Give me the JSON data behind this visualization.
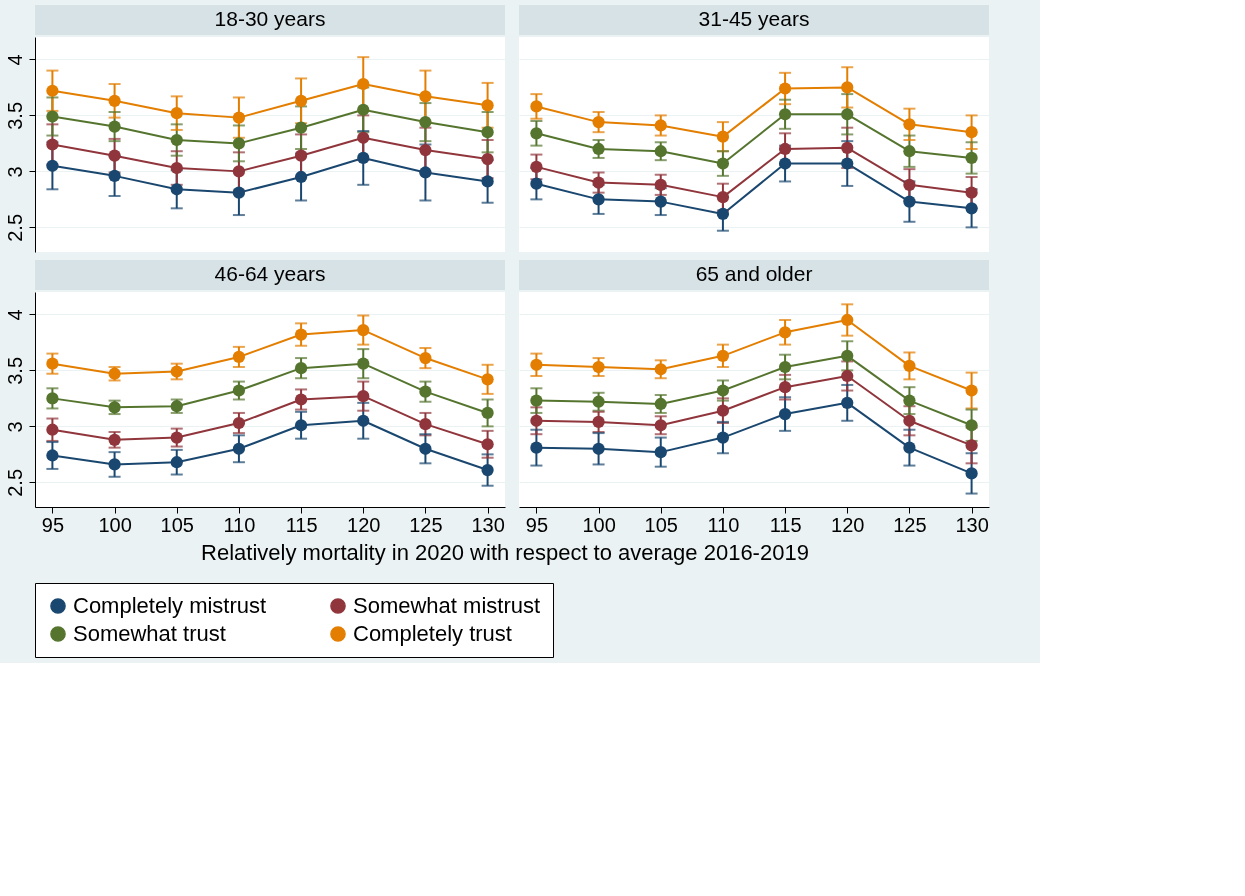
{
  "chart_data": [
    {
      "type": "line",
      "title": "18-30 years",
      "xlim": [
        93.6,
        131.4
      ],
      "ylim": [
        2.28,
        4.2
      ],
      "xticks": [
        95,
        100,
        105,
        110,
        115,
        120,
        125,
        130
      ],
      "yticks": [
        2.5,
        3,
        3.5,
        4
      ],
      "tick_labels": "y",
      "grid": "y",
      "marker": "circle",
      "line_style": "solid",
      "legend": "bottom",
      "x": [
        95,
        100,
        105,
        110,
        115,
        120,
        125,
        130
      ],
      "series": [
        {
          "name": "Completely mistrust",
          "color": "#1a476f",
          "values": [
            3.05,
            2.96,
            2.84,
            2.81,
            2.95,
            3.12,
            2.99,
            2.91
          ],
          "errors": [
            0.21,
            0.18,
            0.17,
            0.2,
            0.21,
            0.24,
            0.25,
            0.19
          ]
        },
        {
          "name": "Somewhat mistrust",
          "color": "#90353b",
          "values": [
            3.24,
            3.14,
            3.03,
            3.0,
            3.14,
            3.3,
            3.19,
            3.11
          ],
          "errors": [
            0.18,
            0.15,
            0.15,
            0.17,
            0.19,
            0.2,
            0.2,
            0.17
          ]
        },
        {
          "name": "Somewhat trust",
          "color": "#55752f",
          "values": [
            3.49,
            3.4,
            3.28,
            3.25,
            3.39,
            3.55,
            3.44,
            3.35
          ],
          "errors": [
            0.17,
            0.13,
            0.14,
            0.16,
            0.19,
            0.2,
            0.17,
            0.18
          ]
        },
        {
          "name": "Completely trust",
          "color": "#e37e00",
          "values": [
            3.72,
            3.63,
            3.52,
            3.48,
            3.63,
            3.78,
            3.67,
            3.59
          ],
          "errors": [
            0.18,
            0.15,
            0.15,
            0.18,
            0.2,
            0.24,
            0.23,
            0.2
          ]
        }
      ]
    },
    {
      "type": "line",
      "title": "31-45 years",
      "xlim": [
        93.6,
        131.4
      ],
      "ylim": [
        2.28,
        4.2
      ],
      "xticks": [
        95,
        100,
        105,
        110,
        115,
        120,
        125,
        130
      ],
      "yticks": [
        2.5,
        3,
        3.5,
        4
      ],
      "tick_labels": false,
      "grid": "y",
      "marker": "circle",
      "line_style": "solid",
      "legend": "bottom",
      "x": [
        95,
        100,
        105,
        110,
        115,
        120,
        125,
        130
      ],
      "series": [
        {
          "name": "Completely mistrust",
          "color": "#1a476f",
          "values": [
            2.89,
            2.75,
            2.73,
            2.62,
            3.07,
            3.07,
            2.73,
            2.67
          ],
          "errors": [
            0.14,
            0.13,
            0.12,
            0.15,
            0.16,
            0.2,
            0.18,
            0.17
          ]
        },
        {
          "name": "Somewhat mistrust",
          "color": "#90353b",
          "values": [
            3.04,
            2.9,
            2.88,
            2.77,
            3.2,
            3.21,
            2.88,
            2.81
          ],
          "errors": [
            0.11,
            0.09,
            0.09,
            0.12,
            0.14,
            0.18,
            0.14,
            0.14
          ]
        },
        {
          "name": "Somewhat trust",
          "color": "#55752f",
          "values": [
            3.34,
            3.2,
            3.18,
            3.07,
            3.51,
            3.51,
            3.18,
            3.12
          ],
          "errors": [
            0.11,
            0.08,
            0.08,
            0.11,
            0.13,
            0.18,
            0.14,
            0.14
          ]
        },
        {
          "name": "Completely trust",
          "color": "#e37e00",
          "values": [
            3.58,
            3.44,
            3.41,
            3.31,
            3.74,
            3.75,
            3.42,
            3.35
          ],
          "errors": [
            0.11,
            0.09,
            0.09,
            0.13,
            0.14,
            0.18,
            0.14,
            0.15
          ]
        }
      ]
    },
    {
      "type": "line",
      "title": "46-64 years",
      "xlabel": "Relatively mortality in 2020 with respect to average 2016-2019",
      "xlim": [
        93.6,
        131.4
      ],
      "ylim": [
        2.28,
        4.2
      ],
      "xticks": [
        95,
        100,
        105,
        110,
        115,
        120,
        125,
        130
      ],
      "yticks": [
        2.5,
        3,
        3.5,
        4
      ],
      "grid": "y",
      "marker": "circle",
      "line_style": "solid",
      "legend": "bottom",
      "x": [
        95,
        100,
        105,
        110,
        115,
        120,
        125,
        130
      ],
      "series": [
        {
          "name": "Completely mistrust",
          "color": "#1a476f",
          "values": [
            2.74,
            2.66,
            2.68,
            2.8,
            3.01,
            3.05,
            2.8,
            2.61
          ],
          "errors": [
            0.12,
            0.11,
            0.11,
            0.12,
            0.12,
            0.16,
            0.13,
            0.14
          ]
        },
        {
          "name": "Somewhat mistrust",
          "color": "#90353b",
          "values": [
            2.97,
            2.88,
            2.9,
            3.03,
            3.24,
            3.27,
            3.02,
            2.84
          ],
          "errors": [
            0.1,
            0.07,
            0.08,
            0.09,
            0.09,
            0.13,
            0.1,
            0.12
          ]
        },
        {
          "name": "Somewhat trust",
          "color": "#55752f",
          "values": [
            3.25,
            3.17,
            3.18,
            3.32,
            3.52,
            3.56,
            3.31,
            3.12
          ],
          "errors": [
            0.09,
            0.06,
            0.06,
            0.08,
            0.09,
            0.13,
            0.09,
            0.12
          ]
        },
        {
          "name": "Completely trust",
          "color": "#e37e00",
          "values": [
            3.56,
            3.47,
            3.49,
            3.62,
            3.82,
            3.86,
            3.61,
            3.42
          ],
          "errors": [
            0.09,
            0.06,
            0.07,
            0.09,
            0.1,
            0.13,
            0.09,
            0.13
          ]
        }
      ]
    },
    {
      "type": "line",
      "title": "65 and older",
      "xlim": [
        93.6,
        131.4
      ],
      "ylim": [
        2.28,
        4.2
      ],
      "xticks": [
        95,
        100,
        105,
        110,
        115,
        120,
        125,
        130
      ],
      "yticks": [
        2.5,
        3,
        3.5,
        4
      ],
      "tick_labels": "x",
      "grid": "y",
      "marker": "circle",
      "line_style": "solid",
      "legend": "bottom",
      "x": [
        95,
        100,
        105,
        110,
        115,
        120,
        125,
        130
      ],
      "series": [
        {
          "name": "Completely mistrust",
          "color": "#1a476f",
          "values": [
            2.81,
            2.8,
            2.77,
            2.9,
            3.11,
            3.21,
            2.81,
            2.58
          ],
          "errors": [
            0.16,
            0.14,
            0.13,
            0.14,
            0.15,
            0.16,
            0.16,
            0.18
          ]
        },
        {
          "name": "Somewhat mistrust",
          "color": "#90353b",
          "values": [
            3.05,
            3.04,
            3.01,
            3.14,
            3.35,
            3.45,
            3.05,
            2.83
          ],
          "errors": [
            0.12,
            0.09,
            0.08,
            0.11,
            0.11,
            0.13,
            0.13,
            0.16
          ]
        },
        {
          "name": "Somewhat trust",
          "color": "#55752f",
          "values": [
            3.23,
            3.22,
            3.2,
            3.32,
            3.53,
            3.63,
            3.23,
            3.01
          ],
          "errors": [
            0.11,
            0.08,
            0.08,
            0.09,
            0.11,
            0.13,
            0.12,
            0.14
          ]
        },
        {
          "name": "Completely trust",
          "color": "#e37e00",
          "values": [
            3.55,
            3.53,
            3.51,
            3.63,
            3.84,
            3.95,
            3.54,
            3.32
          ],
          "errors": [
            0.1,
            0.08,
            0.08,
            0.1,
            0.11,
            0.14,
            0.12,
            0.16
          ]
        }
      ]
    }
  ]
}
